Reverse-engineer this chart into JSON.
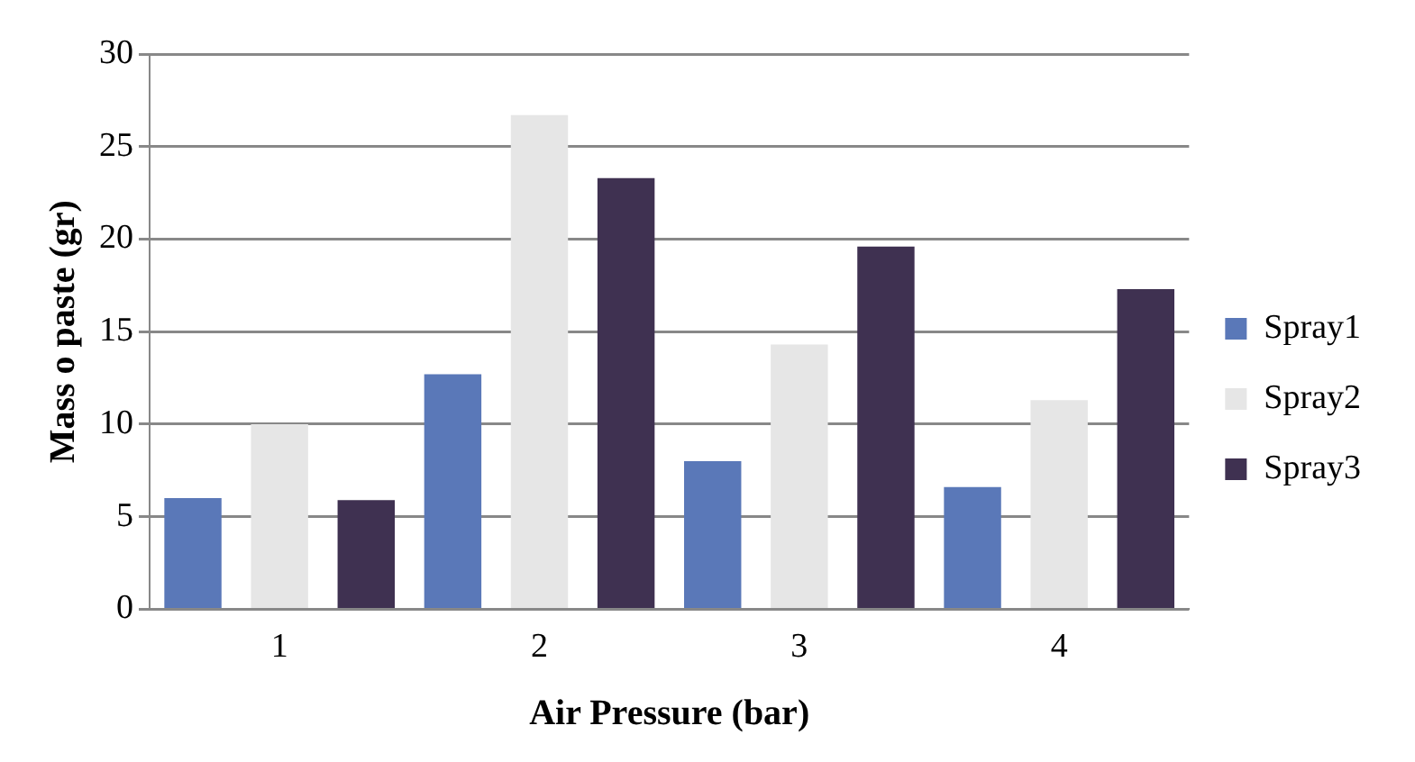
{
  "chart_data": {
    "type": "bar",
    "xlabel": "Air Pressure (bar)",
    "ylabel": "Mass o paste (gr)",
    "categories": [
      "1",
      "2",
      "3",
      "4"
    ],
    "series": [
      {
        "name": "Spray1",
        "color": "#5a78b8",
        "values": [
          6.0,
          12.7,
          8.0,
          6.6
        ]
      },
      {
        "name": "Spray2",
        "color": "#e6e6e6",
        "values": [
          10.0,
          26.7,
          14.3,
          11.3
        ]
      },
      {
        "name": "Spray3",
        "color": "#3f3151",
        "values": [
          5.9,
          23.3,
          19.6,
          17.3
        ]
      }
    ],
    "ylim": [
      0,
      30
    ],
    "yticks": [
      0,
      5,
      10,
      15,
      20,
      25,
      30
    ],
    "grid": "y",
    "legend": "right"
  }
}
